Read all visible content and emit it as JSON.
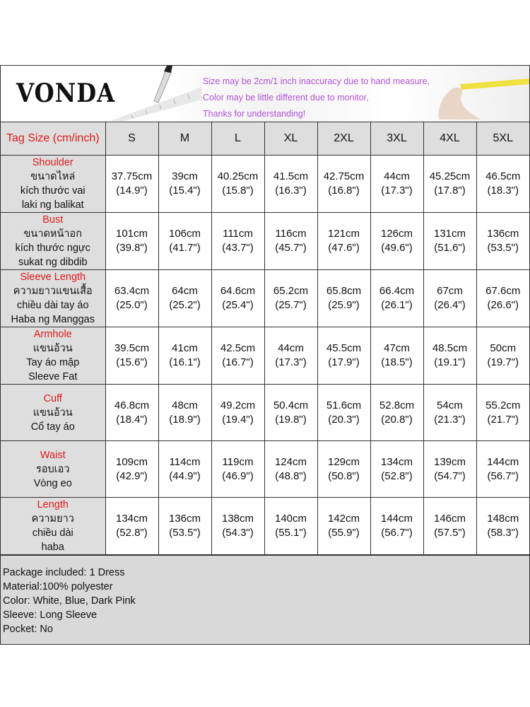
{
  "brand": "VONDA",
  "notes": [
    "Size may be 2cm/1 inch inaccuracy due to hand measure,",
    "Color may be little different due to monitor,",
    "Thanks for understanding!"
  ],
  "colors": {
    "label_red": "#e0191b",
    "note_purple": "#b052d6",
    "cell_gray": "#dedede"
  },
  "table": {
    "header": "Tag Size (cm/inch)",
    "sizes": [
      "S",
      "M",
      "L",
      "XL",
      "2XL",
      "3XL",
      "4XL",
      "5XL"
    ],
    "rows": [
      {
        "title": "Shoulder",
        "sub": [
          "ขนาดไหล่",
          "kích thước vai",
          "laki ng balikat"
        ],
        "cm": [
          "37.75cm",
          "39cm",
          "40.25cm",
          "41.5cm",
          "42.75cm",
          "44cm",
          "45.25cm",
          "46.5cm"
        ],
        "inch": [
          "(14.9\")",
          "(15.4\")",
          "(15.8\")",
          "(16.3\")",
          "(16.8\")",
          "(17.3\")",
          "(17.8\")",
          "(18.3\")"
        ]
      },
      {
        "title": "Bust",
        "sub": [
          "ขนาดหน้าอก",
          "kích thước ngực",
          "sukat ng dibdib"
        ],
        "cm": [
          "101cm",
          "106cm",
          "111cm",
          "116cm",
          "121cm",
          "126cm",
          "131cm",
          "136cm"
        ],
        "inch": [
          "(39.8\")",
          "(41.7\")",
          "(43.7\")",
          "(45.7\")",
          "(47.6\")",
          "(49.6\")",
          "(51.6\")",
          "(53.5\")"
        ]
      },
      {
        "title": "Sleeve Length",
        "sub": [
          "ความยาวแขนเสื้อ",
          "chiều dài tay áo",
          "Haba ng Manggas"
        ],
        "cm": [
          "63.4cm",
          "64cm",
          "64.6cm",
          "65.2cm",
          "65.8cm",
          "66.4cm",
          "67cm",
          "67.6cm"
        ],
        "inch": [
          "(25.0\")",
          "(25.2\")",
          "(25.4\")",
          "(25.7\")",
          "(25.9\")",
          "(26.1\")",
          "(26.4\")",
          "(26.6\")"
        ]
      },
      {
        "title": "Armhole",
        "sub": [
          "แขนอ้วน",
          "Tay áo mập",
          "Sleeve Fat"
        ],
        "cm": [
          "39.5cm",
          "41cm",
          "42.5cm",
          "44cm",
          "45.5cm",
          "47cm",
          "48.5cm",
          "50cm"
        ],
        "inch": [
          "(15.6\")",
          "(16.1\")",
          "(16.7\")",
          "(17.3\")",
          "(17.9\")",
          "(18.5\")",
          "(19.1\")",
          "(19.7\")"
        ]
      },
      {
        "title": "Cuff",
        "sub": [
          "แขนอ้วน",
          "Cổ tay áo"
        ],
        "cm": [
          "46.8cm",
          "48cm",
          "49.2cm",
          "50.4cm",
          "51.6cm",
          "52.8cm",
          "54cm",
          "55.2cm"
        ],
        "inch": [
          "(18.4\")",
          "(18.9\")",
          "(19.4\")",
          "(19.8\")",
          "(20.3\")",
          "(20.8\")",
          "(21.3\")",
          "(21.7\")"
        ]
      },
      {
        "title": "Waist",
        "sub": [
          "รอบเอว",
          "Vòng eo"
        ],
        "cm": [
          "109cm",
          "114cm",
          "119cm",
          "124cm",
          "129cm",
          "134cm",
          "139cm",
          "144cm"
        ],
        "inch": [
          "(42.9\")",
          "(44.9\")",
          "(46.9\")",
          "(48.8\")",
          "(50.8\")",
          "(52.8\")",
          "(54.7\")",
          "(56.7\")"
        ]
      },
      {
        "title": "Length",
        "sub": [
          "ความยาว",
          "chiều dài",
          "haba"
        ],
        "cm": [
          "134cm",
          "136cm",
          "138cm",
          "140cm",
          "142cm",
          "144cm",
          "146cm",
          "148cm"
        ],
        "inch": [
          "(52.8\")",
          "(53.5\")",
          "(54.3\")",
          "(55.1\")",
          "(55.9\")",
          "(56.7\")",
          "(57.5\")",
          "(58.3\")"
        ]
      }
    ]
  },
  "footer": [
    "Package included: 1 Dress",
    "Material:100% polyester",
    "Color: White, Blue, Dark Pink",
    "Sleeve: Long Sleeve",
    "Pocket: No"
  ]
}
